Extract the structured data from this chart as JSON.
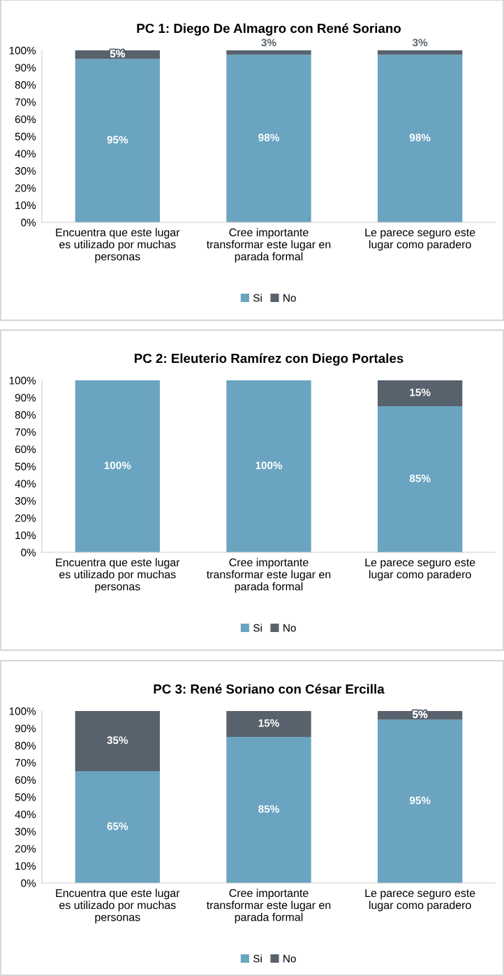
{
  "chart_data": [
    {
      "type": "bar",
      "title": "PC 1: Diego De Almagro con René Soriano",
      "stacked": true,
      "categories": [
        "Encuentra que este lugar es utilizado por muchas personas",
        "Cree importante transformar este lugar en parada formal",
        "Le parece seguro este lugar como paradero"
      ],
      "series": [
        {
          "name": "Si",
          "color": "#6aa4c0",
          "values": [
            95,
            97.5,
            97.5
          ],
          "value_labels": [
            "95%",
            "98%",
            "98%"
          ]
        },
        {
          "name": "No",
          "color": "#58626d",
          "values": [
            5,
            2.5,
            2.5
          ],
          "value_labels": [
            "5%",
            "3%",
            "3%"
          ]
        }
      ],
      "ylim": [
        0,
        100
      ],
      "yticks": [
        {
          "value": 0,
          "label": "0%"
        },
        {
          "value": 10,
          "label": "10%"
        },
        {
          "value": 20,
          "label": "20%"
        },
        {
          "value": 30,
          "label": "30%"
        },
        {
          "value": 40,
          "label": "40%"
        },
        {
          "value": 50,
          "label": "50%"
        },
        {
          "value": 60,
          "label": "60%"
        },
        {
          "value": 70,
          "label": "70%"
        },
        {
          "value": 80,
          "label": "80%"
        },
        {
          "value": 90,
          "label": "90%"
        },
        {
          "value": 100,
          "label": "100%"
        }
      ],
      "legend": "bottom",
      "grid": false
    },
    {
      "type": "bar",
      "title": "PC 2: Eleuterio Ramírez con Diego Portales",
      "stacked": true,
      "categories": [
        "Encuentra que este lugar es utilizado por muchas personas",
        "Cree importante transformar este lugar en parada formal",
        "Le parece seguro este lugar como paradero"
      ],
      "series": [
        {
          "name": "Si",
          "color": "#6aa4c0",
          "values": [
            100,
            100,
            85
          ],
          "value_labels": [
            "100%",
            "100%",
            "85%"
          ]
        },
        {
          "name": "No",
          "color": "#58626d",
          "values": [
            0,
            0,
            15
          ],
          "value_labels": [
            null,
            null,
            "15%"
          ]
        }
      ],
      "ylim": [
        0,
        100
      ],
      "yticks": [
        {
          "value": 0,
          "label": "0%"
        },
        {
          "value": 10,
          "label": "10%"
        },
        {
          "value": 20,
          "label": "20%"
        },
        {
          "value": 30,
          "label": "30%"
        },
        {
          "value": 40,
          "label": "40%"
        },
        {
          "value": 50,
          "label": "50%"
        },
        {
          "value": 60,
          "label": "60%"
        },
        {
          "value": 70,
          "label": "70%"
        },
        {
          "value": 80,
          "label": "80%"
        },
        {
          "value": 90,
          "label": "90%"
        },
        {
          "value": 100,
          "label": "100%"
        }
      ],
      "legend": "bottom",
      "grid": false
    },
    {
      "type": "bar",
      "title": "PC 3: René Soriano con César Ercilla",
      "stacked": true,
      "categories": [
        "Encuentra que este lugar es utilizado por muchas personas",
        "Cree importante transformar este lugar en parada formal",
        "Le parece seguro este lugar como paradero"
      ],
      "series": [
        {
          "name": "Si",
          "color": "#6aa4c0",
          "values": [
            65,
            85,
            95
          ],
          "value_labels": [
            "65%",
            "85%",
            "95%"
          ]
        },
        {
          "name": "No",
          "color": "#58626d",
          "values": [
            35,
            15,
            5
          ],
          "value_labels": [
            "35%",
            "15%",
            "5%"
          ]
        }
      ],
      "ylim": [
        0,
        100
      ],
      "yticks": [
        {
          "value": 0,
          "label": "0%"
        },
        {
          "value": 10,
          "label": "10%"
        },
        {
          "value": 20,
          "label": "20%"
        },
        {
          "value": 30,
          "label": "30%"
        },
        {
          "value": 40,
          "label": "40%"
        },
        {
          "value": 50,
          "label": "50%"
        },
        {
          "value": 60,
          "label": "60%"
        },
        {
          "value": 70,
          "label": "70%"
        },
        {
          "value": 80,
          "label": "80%"
        },
        {
          "value": 90,
          "label": "90%"
        },
        {
          "value": 100,
          "label": "100%"
        }
      ],
      "legend": "bottom",
      "grid": false
    }
  ]
}
